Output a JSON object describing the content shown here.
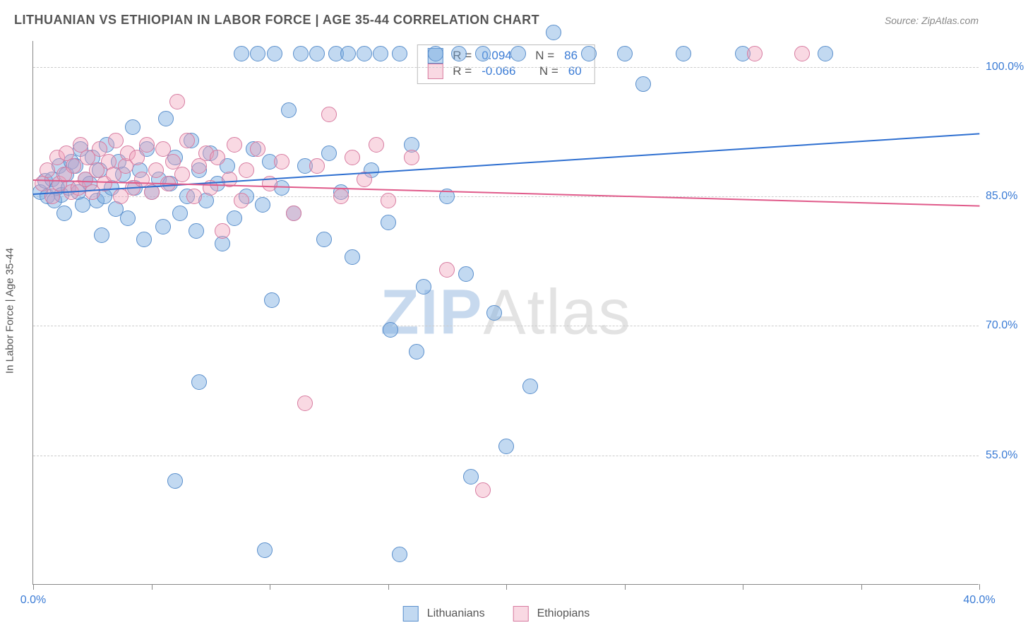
{
  "title": "LITHUANIAN VS ETHIOPIAN IN LABOR FORCE | AGE 35-44 CORRELATION CHART",
  "source": "Source: ZipAtlas.com",
  "y_axis_title": "In Labor Force | Age 35-44",
  "watermark": {
    "text_bold": "ZIP",
    "text_light": "Atlas",
    "color_bold": "#c7d9ee",
    "color_light": "#e3e3e3"
  },
  "colors": {
    "blue_fill": "rgba(120,170,225,0.45)",
    "blue_stroke": "#5a8fcc",
    "pink_fill": "rgba(240,160,185,0.40)",
    "pink_stroke": "#d77ba0",
    "blue_line": "#2e6fd0",
    "pink_line": "#e05a8a",
    "tick_text": "#3a7bd5",
    "grid": "#cccccc"
  },
  "chart": {
    "type": "scatter",
    "xlim": [
      0,
      40
    ],
    "ylim": [
      40,
      103
    ],
    "x_ticks": [
      0,
      5,
      10,
      15,
      20,
      25,
      30,
      35,
      40
    ],
    "x_tick_labels": {
      "0": "0.0%",
      "40": "40.0%"
    },
    "y_ticks": [
      55,
      70,
      85,
      100
    ],
    "y_tick_labels": {
      "55": "55.0%",
      "70": "70.0%",
      "85": "85.0%",
      "100": "100.0%"
    },
    "marker_radius": 11,
    "series": [
      {
        "name": "Lithuanians",
        "color_key": "blue",
        "R": "0.094",
        "N": "86",
        "trend": {
          "x1": 0,
          "y1": 85.3,
          "x2": 40,
          "y2": 92.3
        },
        "points": [
          [
            0.3,
            85.5
          ],
          [
            0.5,
            86.8
          ],
          [
            0.6,
            85.0
          ],
          [
            0.8,
            87.0
          ],
          [
            0.9,
            84.5
          ],
          [
            1.0,
            86.0
          ],
          [
            1.1,
            88.5
          ],
          [
            1.2,
            85.2
          ],
          [
            1.3,
            83.0
          ],
          [
            1.4,
            87.5
          ],
          [
            1.5,
            86.0
          ],
          [
            1.6,
            89.0
          ],
          [
            1.8,
            88.5
          ],
          [
            1.9,
            85.5
          ],
          [
            2.0,
            90.5
          ],
          [
            2.1,
            84.0
          ],
          [
            2.2,
            87.0
          ],
          [
            2.4,
            86.5
          ],
          [
            2.5,
            89.5
          ],
          [
            2.7,
            84.5
          ],
          [
            2.8,
            88.0
          ],
          [
            2.9,
            80.5
          ],
          [
            3.0,
            85.0
          ],
          [
            3.1,
            91.0
          ],
          [
            3.3,
            86.0
          ],
          [
            3.5,
            83.5
          ],
          [
            3.6,
            89.0
          ],
          [
            3.8,
            87.5
          ],
          [
            4.0,
            82.5
          ],
          [
            4.2,
            93.0
          ],
          [
            4.3,
            86.0
          ],
          [
            4.5,
            88.0
          ],
          [
            4.7,
            80.0
          ],
          [
            4.8,
            90.5
          ],
          [
            5.0,
            85.5
          ],
          [
            5.3,
            87.0
          ],
          [
            5.5,
            81.5
          ],
          [
            5.6,
            94.0
          ],
          [
            5.8,
            86.5
          ],
          [
            6.0,
            89.5
          ],
          [
            6.2,
            83.0
          ],
          [
            6.5,
            85.0
          ],
          [
            6.7,
            91.5
          ],
          [
            6.9,
            81.0
          ],
          [
            7.0,
            88.0
          ],
          [
            7.3,
            84.5
          ],
          [
            7.5,
            90.0
          ],
          [
            7.8,
            86.5
          ],
          [
            8.0,
            79.5
          ],
          [
            8.2,
            88.5
          ],
          [
            8.5,
            82.5
          ],
          [
            8.8,
            101.5
          ],
          [
            9.0,
            85.0
          ],
          [
            9.3,
            90.5
          ],
          [
            9.5,
            101.5
          ],
          [
            9.7,
            84.0
          ],
          [
            10.0,
            89.0
          ],
          [
            10.1,
            73.0
          ],
          [
            10.2,
            101.5
          ],
          [
            10.5,
            86.0
          ],
          [
            10.8,
            95.0
          ],
          [
            11.0,
            83.0
          ],
          [
            11.3,
            101.5
          ],
          [
            11.5,
            88.5
          ],
          [
            12.0,
            101.5
          ],
          [
            12.3,
            80.0
          ],
          [
            12.5,
            90.0
          ],
          [
            12.8,
            101.5
          ],
          [
            13.0,
            85.5
          ],
          [
            13.3,
            101.5
          ],
          [
            13.5,
            78.0
          ],
          [
            14.0,
            101.5
          ],
          [
            14.3,
            88.0
          ],
          [
            14.7,
            101.5
          ],
          [
            15.0,
            82.0
          ],
          [
            15.1,
            69.5
          ],
          [
            15.5,
            101.5
          ],
          [
            16.0,
            91.0
          ],
          [
            16.2,
            67.0
          ],
          [
            16.5,
            74.5
          ],
          [
            17.0,
            101.5
          ],
          [
            17.5,
            85.0
          ],
          [
            18.0,
            101.5
          ],
          [
            18.3,
            76.0
          ],
          [
            18.5,
            52.5
          ],
          [
            19.0,
            101.5
          ],
          [
            19.5,
            71.5
          ],
          [
            20.0,
            56.0
          ],
          [
            20.5,
            101.5
          ],
          [
            21.0,
            63.0
          ],
          [
            22.0,
            104.0
          ],
          [
            23.5,
            101.5
          ],
          [
            25.0,
            101.5
          ],
          [
            25.8,
            98.0
          ],
          [
            27.5,
            101.5
          ],
          [
            30.0,
            101.5
          ],
          [
            33.5,
            101.5
          ],
          [
            9.8,
            44.0
          ],
          [
            15.5,
            43.5
          ],
          [
            7.0,
            63.5
          ],
          [
            6.0,
            52.0
          ]
        ]
      },
      {
        "name": "Ethiopians",
        "color_key": "pink",
        "R": "-0.066",
        "N": "60",
        "trend": {
          "x1": 0,
          "y1": 87.0,
          "x2": 40,
          "y2": 84.0
        },
        "points": [
          [
            0.4,
            86.5
          ],
          [
            0.6,
            88.0
          ],
          [
            0.8,
            85.0
          ],
          [
            1.0,
            89.5
          ],
          [
            1.1,
            86.5
          ],
          [
            1.3,
            87.5
          ],
          [
            1.4,
            90.0
          ],
          [
            1.6,
            85.5
          ],
          [
            1.7,
            88.5
          ],
          [
            1.9,
            86.0
          ],
          [
            2.0,
            91.0
          ],
          [
            2.2,
            87.0
          ],
          [
            2.3,
            89.5
          ],
          [
            2.5,
            85.5
          ],
          [
            2.7,
            88.0
          ],
          [
            2.8,
            90.5
          ],
          [
            3.0,
            86.5
          ],
          [
            3.2,
            89.0
          ],
          [
            3.4,
            87.5
          ],
          [
            3.5,
            91.5
          ],
          [
            3.7,
            85.0
          ],
          [
            3.9,
            88.5
          ],
          [
            4.0,
            90.0
          ],
          [
            4.2,
            86.0
          ],
          [
            4.4,
            89.5
          ],
          [
            4.6,
            87.0
          ],
          [
            4.8,
            91.0
          ],
          [
            5.0,
            85.5
          ],
          [
            5.2,
            88.0
          ],
          [
            5.5,
            90.5
          ],
          [
            5.7,
            86.5
          ],
          [
            5.9,
            89.0
          ],
          [
            6.1,
            96.0
          ],
          [
            6.3,
            87.5
          ],
          [
            6.5,
            91.5
          ],
          [
            6.8,
            85.0
          ],
          [
            7.0,
            88.5
          ],
          [
            7.3,
            90.0
          ],
          [
            7.5,
            86.0
          ],
          [
            7.8,
            89.5
          ],
          [
            8.0,
            81.0
          ],
          [
            8.3,
            87.0
          ],
          [
            8.5,
            91.0
          ],
          [
            8.8,
            84.5
          ],
          [
            9.0,
            88.0
          ],
          [
            9.5,
            90.5
          ],
          [
            10.0,
            86.5
          ],
          [
            10.5,
            89.0
          ],
          [
            11.0,
            83.0
          ],
          [
            11.5,
            61.0
          ],
          [
            12.0,
            88.5
          ],
          [
            12.5,
            94.5
          ],
          [
            13.0,
            85.0
          ],
          [
            13.5,
            89.5
          ],
          [
            14.0,
            87.0
          ],
          [
            14.5,
            91.0
          ],
          [
            15.0,
            84.5
          ],
          [
            16.0,
            89.5
          ],
          [
            17.5,
            76.5
          ],
          [
            19.0,
            51.0
          ],
          [
            30.5,
            101.5
          ],
          [
            32.5,
            101.5
          ]
        ]
      }
    ],
    "legend_bottom": [
      {
        "label": "Lithuanians",
        "color_key": "blue"
      },
      {
        "label": "Ethiopians",
        "color_key": "pink"
      }
    ]
  }
}
